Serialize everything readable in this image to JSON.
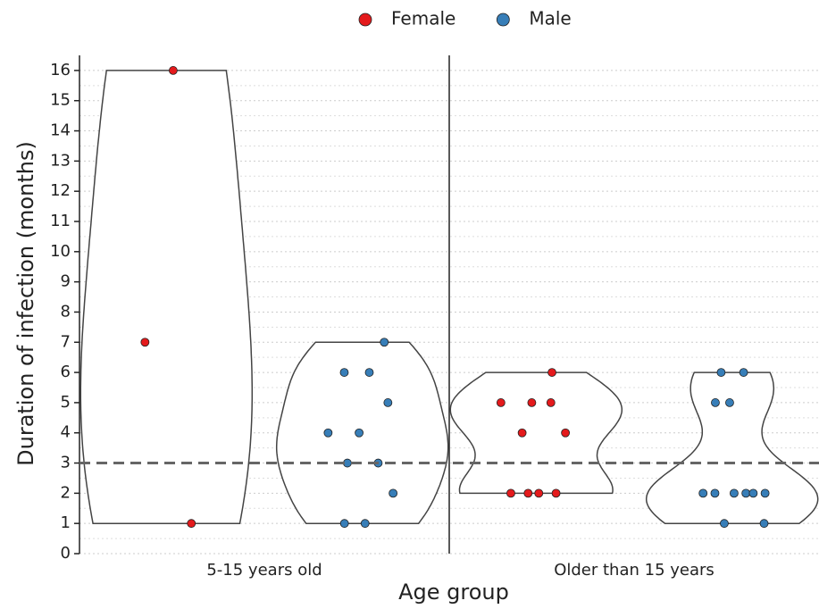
{
  "chart_data": {
    "type": "violin",
    "x_label": "Age group",
    "y_label": "Duration of infection (months)",
    "categories": [
      "5-15 years old",
      "Older than 15 years"
    ],
    "series": [
      {
        "name": "Female",
        "color": "#e41a1c",
        "values": [
          [
            16,
            7,
            1
          ],
          [
            6,
            5,
            5,
            5,
            4,
            4,
            2,
            2,
            2,
            2
          ]
        ]
      },
      {
        "name": "Male",
        "color": "#377eb8",
        "values": [
          [
            7,
            6,
            6,
            5,
            4,
            4,
            3,
            3,
            2,
            1,
            1
          ],
          [
            6,
            6,
            5,
            5,
            2,
            2,
            2,
            2,
            2,
            2,
            1,
            1
          ]
        ]
      }
    ],
    "hline": 3,
    "ylim": [
      0,
      16.5
    ],
    "yticks": [
      0,
      1,
      2,
      3,
      4,
      5,
      6,
      7,
      8,
      9,
      10,
      11,
      12,
      13,
      14,
      15,
      16
    ],
    "grid": true,
    "legend": "top"
  }
}
